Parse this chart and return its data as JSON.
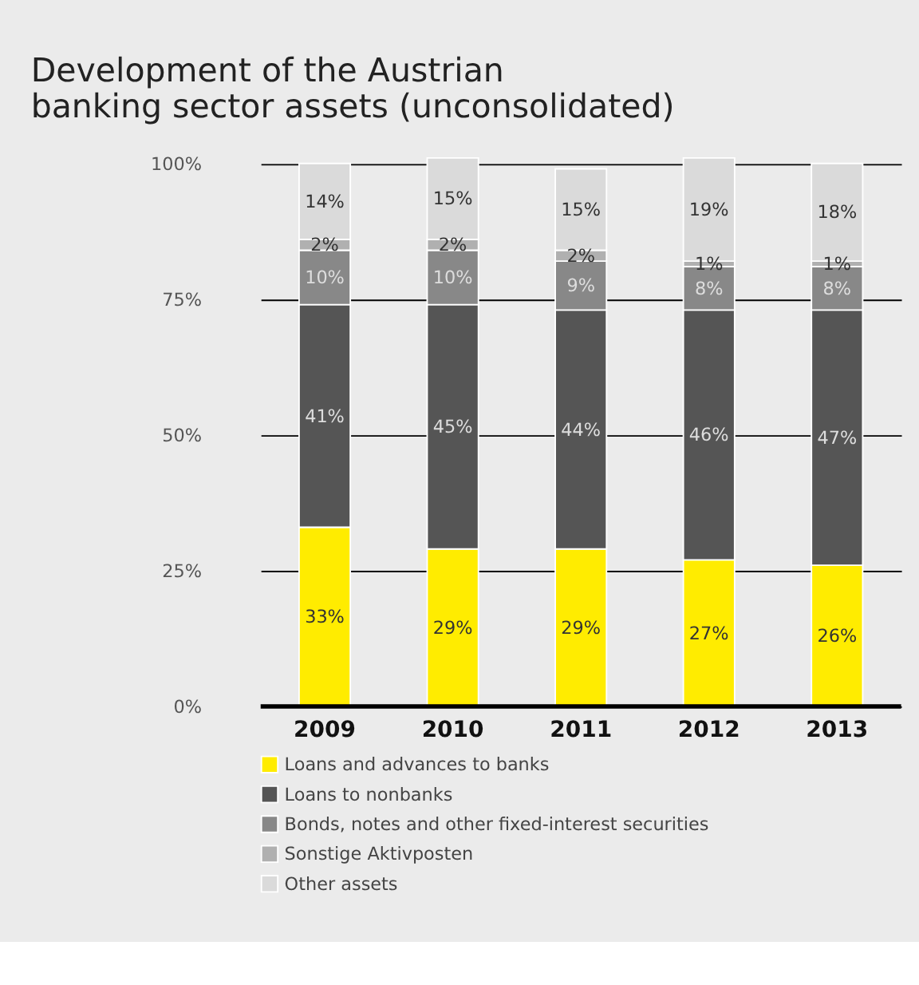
{
  "chart_data": {
    "type": "bar",
    "title": "Development of the Austrian\nbanking sector assets (unconsolidated)",
    "categories": [
      "2009",
      "2010",
      "2011",
      "2012",
      "2013"
    ],
    "stacked": true,
    "grid": "y",
    "legend": "bottom",
    "ylim": [
      0,
      101
    ],
    "yticks": [
      {
        "value": 0,
        "label": "0%"
      },
      {
        "value": 25,
        "label": "25%"
      },
      {
        "value": 50,
        "label": "50%"
      },
      {
        "value": 75,
        "label": "75%"
      },
      {
        "value": 100,
        "label": "100%"
      }
    ],
    "series": [
      {
        "name": "Loans and advances to banks",
        "color": "#ffec00",
        "values": [
          33,
          29,
          29,
          27,
          26
        ],
        "value_labels": [
          "33%",
          "29%",
          "29%",
          "27%",
          "26%"
        ]
      },
      {
        "name": "Loans to nonbanks",
        "color": "#555555",
        "values": [
          41,
          45,
          44,
          46,
          47
        ],
        "value_labels": [
          "41%",
          "45%",
          "44%",
          "46%",
          "47%"
        ]
      },
      {
        "name": "Bonds, notes and other fixed-interest securities",
        "color": "#888888",
        "values": [
          10,
          10,
          9,
          8,
          8
        ],
        "value_labels": [
          "10%",
          "10%",
          "9%",
          "8%",
          "8%"
        ]
      },
      {
        "name": "Sonstige Aktivposten",
        "color": "#b0b0b0",
        "values": [
          2,
          2,
          2,
          1,
          1
        ],
        "value_labels": [
          "2%",
          "2%",
          "2%",
          "1%",
          "1%"
        ]
      },
      {
        "name": "Other assets",
        "color": "#dadada",
        "values": [
          14,
          15,
          15,
          19,
          18
        ],
        "value_labels": [
          "14%",
          "15%",
          "15%",
          "19%",
          "18%"
        ]
      }
    ]
  }
}
